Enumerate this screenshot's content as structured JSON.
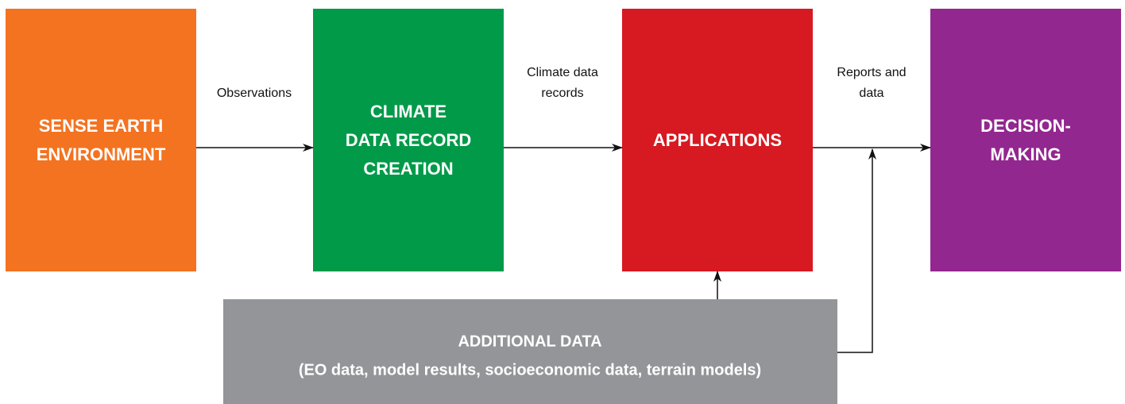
{
  "nodes": [
    {
      "lines": [
        "SENSE EARTH",
        "ENVIRONMENT"
      ]
    },
    {
      "lines": [
        "CLIMATE",
        "DATA RECORD",
        "CREATION"
      ]
    },
    {
      "lines": [
        "APPLICATIONS"
      ]
    },
    {
      "lines": [
        "DECISION-",
        "MAKING"
      ]
    },
    {
      "lines": [
        "ADDITIONAL DATA",
        "(EO data, model results, socioeconomic data, terrain models)"
      ]
    }
  ],
  "edges": [
    {
      "lines": [
        "Observations"
      ]
    },
    {
      "lines": [
        "Climate data",
        "records"
      ]
    },
    {
      "lines": [
        "Reports and",
        "data"
      ]
    }
  ]
}
